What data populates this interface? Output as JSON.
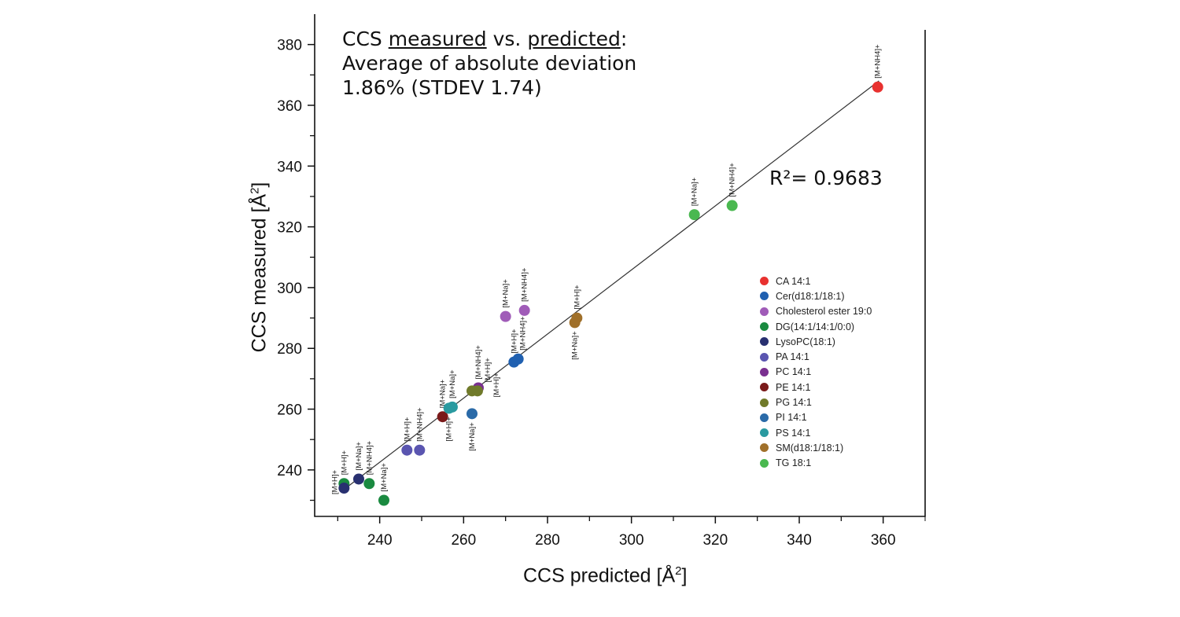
{
  "chart_data": {
    "type": "scatter",
    "xlabel": "CCS predicted [Å",
    "ylabel": "CCS measured [Å",
    "label_sup": "2",
    "label_close": "]",
    "xlim": [
      224.5,
      370
    ],
    "ylim": [
      224.7,
      390
    ],
    "xticks": [
      240,
      260,
      280,
      300,
      320,
      340,
      360
    ],
    "yticks": [
      240,
      260,
      280,
      300,
      320,
      340,
      360,
      380
    ],
    "grid": false,
    "legend_placement": "right",
    "annotation": {
      "line1_a": "CCS ",
      "line1_b": "measured",
      "line1_c": " vs. ",
      "line1_d": "predicted",
      "line1_e": ":",
      "line2": "Average of absolute deviation",
      "line3": "1.86% (STDEV 1.74)"
    },
    "r_squared_label": "R²= 0.9683",
    "fit_line": {
      "slope": 1.0547,
      "intercept": -10.6,
      "x_range": [
        231,
        359
      ]
    },
    "series": [
      {
        "name": "CA 14:1",
        "color": "#e8312f",
        "points": [
          {
            "x": 358.7,
            "y": 366,
            "label": "[M+NH4]+",
            "pos": "above"
          }
        ]
      },
      {
        "name": "Cer(d18:1/18:1)",
        "color": "#2060b0",
        "points": [
          {
            "x": 272,
            "y": 275.5,
            "label": "[M+H]+",
            "pos": "above"
          },
          {
            "x": 273,
            "y": 276.5,
            "label": "[M+NH4]+",
            "pos": "above"
          }
        ]
      },
      {
        "name": "Cholesterol ester 19:0",
        "color": "#a05cb8",
        "points": [
          {
            "x": 270,
            "y": 290.5,
            "label": "[M+Na]+",
            "pos": "above"
          },
          {
            "x": 274.5,
            "y": 292.5,
            "label": "[M+NH4]+",
            "pos": "above"
          }
        ]
      },
      {
        "name": "DG(14:1/14:1/0:0)",
        "color": "#1a8a40",
        "points": [
          {
            "x": 231.5,
            "y": 235.5,
            "label": "[M+H]+",
            "pos": "above"
          },
          {
            "x": 237.5,
            "y": 235.5,
            "label": "[M+NH4]+",
            "pos": "above"
          },
          {
            "x": 241,
            "y": 230,
            "label": "[M+Na]+",
            "pos": "above"
          }
        ]
      },
      {
        "name": "LysoPC(18:1)",
        "color": "#283070",
        "points": [
          {
            "x": 231.5,
            "y": 234,
            "label": "[M+H]+",
            "pos": "left"
          },
          {
            "x": 235,
            "y": 237,
            "label": "[M+Na]+",
            "pos": "above"
          }
        ]
      },
      {
        "name": "PA 14:1",
        "color": "#5a55b0",
        "points": [
          {
            "x": 246.5,
            "y": 246.5,
            "label": "[M+H]+",
            "pos": "above"
          },
          {
            "x": 249.5,
            "y": 246.5,
            "label": "[M+NH4]+",
            "pos": "above"
          }
        ]
      },
      {
        "name": "PC 14:1",
        "color": "#7a3090",
        "points": [
          {
            "x": 263.5,
            "y": 267,
            "label": "[M+NH4]+",
            "pos": "above"
          }
        ]
      },
      {
        "name": "PE 14:1",
        "color": "#7a1a1a",
        "points": [
          {
            "x": 255,
            "y": 257.5,
            "label": "[M+Na]+",
            "pos": "above"
          }
        ]
      },
      {
        "name": "PG 14:1",
        "color": "#707a2a",
        "points": [
          {
            "x": 262,
            "y": 266,
            "label": "[M+H]+",
            "pos": "above"
          },
          {
            "x": 263.3,
            "y": 266,
            "label": "[M+H]+",
            "pos": "right"
          }
        ]
      },
      {
        "name": "PI 14:1",
        "color": "#2a6aa8",
        "points": [
          {
            "x": 262,
            "y": 258.5,
            "label": "[M+Na]+",
            "pos": "below"
          }
        ]
      },
      {
        "name": "PS 14:1",
        "color": "#2a9aa0",
        "points": [
          {
            "x": 256.5,
            "y": 260.3,
            "label": "[M+H]+",
            "pos": "below"
          },
          {
            "x": 257.3,
            "y": 260.7,
            "label": "[M+Na]+",
            "pos": "above"
          }
        ]
      },
      {
        "name": "SM(d18:1/18:1)",
        "color": "#a0702a",
        "points": [
          {
            "x": 287,
            "y": 290,
            "label": "[M+H]+",
            "pos": "above"
          },
          {
            "x": 286.5,
            "y": 288.5,
            "label": "[M+Na]+",
            "pos": "below"
          }
        ]
      },
      {
        "name": "TG 18:1",
        "color": "#4ab850",
        "points": [
          {
            "x": 315,
            "y": 324,
            "label": "[M+Na]+",
            "pos": "above"
          },
          {
            "x": 324,
            "y": 327,
            "label": "[M+NH4]+",
            "pos": "above"
          }
        ]
      }
    ]
  }
}
